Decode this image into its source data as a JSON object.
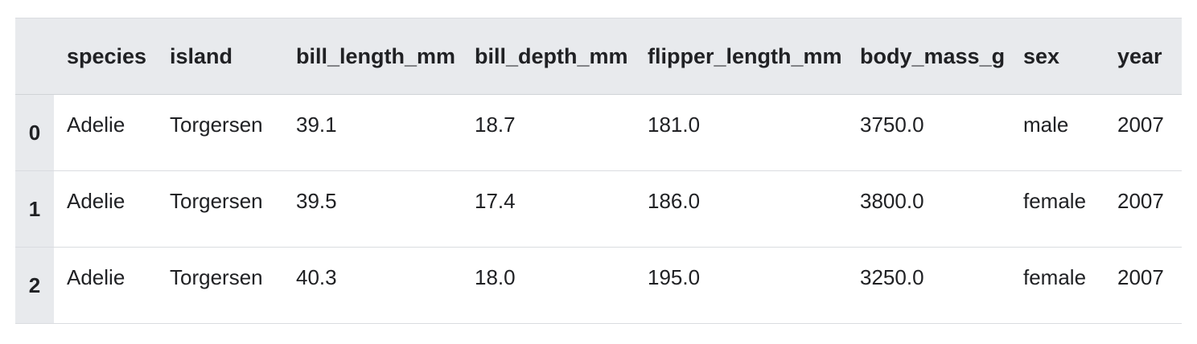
{
  "table": {
    "columns": [
      "species",
      "island",
      "bill_length_mm",
      "bill_depth_mm",
      "flipper_length_mm",
      "body_mass_g",
      "sex",
      "year"
    ],
    "rows": [
      {
        "index": "0",
        "cells": [
          "Adelie",
          "Torgersen",
          "39.1",
          "18.7",
          "181.0",
          "3750.0",
          "male",
          "2007"
        ]
      },
      {
        "index": "1",
        "cells": [
          "Adelie",
          "Torgersen",
          "39.5",
          "17.4",
          "186.0",
          "3800.0",
          "female",
          "2007"
        ]
      },
      {
        "index": "2",
        "cells": [
          "Adelie",
          "Torgersen",
          "40.3",
          "18.0",
          "195.0",
          "3250.0",
          "female",
          "2007"
        ]
      }
    ]
  },
  "colors": {
    "header_bg": "#e8eaed",
    "row_border": "#dadce0",
    "text": "#202124"
  }
}
